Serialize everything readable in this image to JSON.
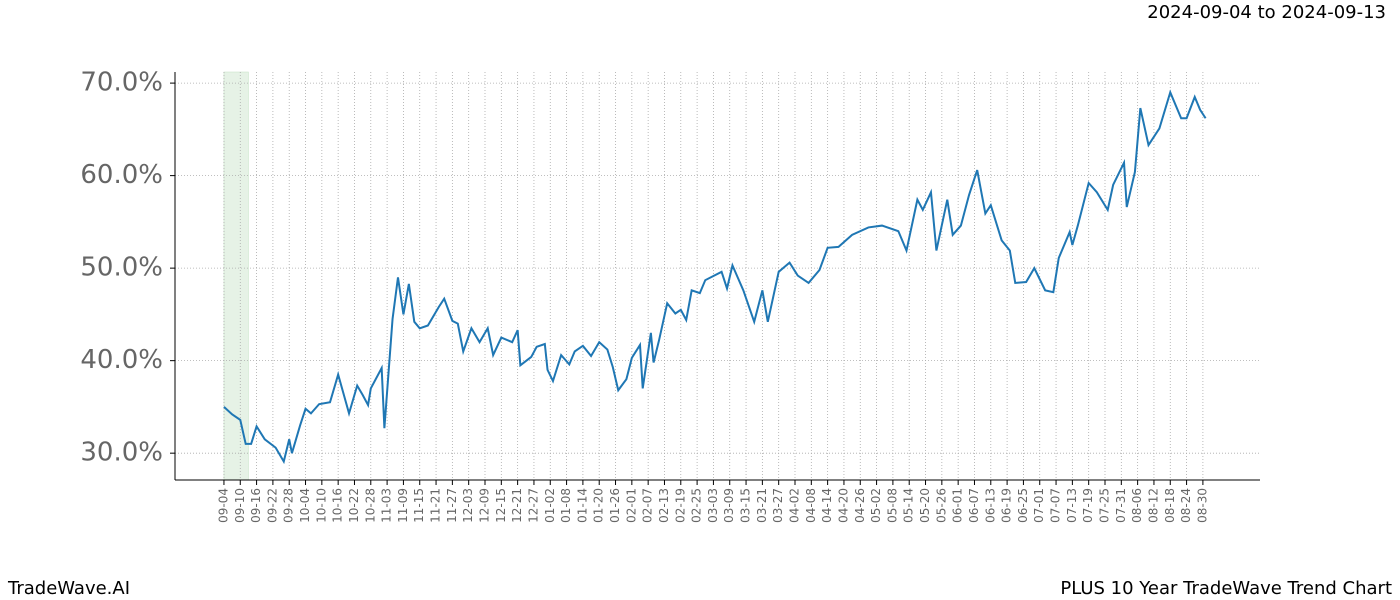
{
  "chart_data": {
    "type": "line",
    "title": "PLUS 10 Year TradeWave Trend Chart",
    "subtitle": "2024-09-04 to 2024-09-13",
    "brand": "TradeWave.AI",
    "shade": [
      "09-04",
      "09-13"
    ],
    "shade_color": "#d6ebd6",
    "grid": true,
    "x": [
      "09-04",
      "09-07",
      "09-10",
      "09-12",
      "09-14",
      "09-16",
      "09-19",
      "09-23",
      "09-26",
      "09-28",
      "09-29",
      "10-02",
      "10-04",
      "10-06",
      "10-09",
      "10-13",
      "10-16",
      "10-20",
      "10-23",
      "10-25",
      "10-27",
      "10-28",
      "11-01",
      "11-02",
      "11-05",
      "11-07",
      "11-09",
      "11-11",
      "11-13",
      "11-15",
      "11-18",
      "11-22",
      "11-24",
      "11-27",
      "11-29",
      "12-01",
      "12-04",
      "12-07",
      "12-10",
      "12-12",
      "12-15",
      "12-19",
      "12-21",
      "12-22",
      "12-26",
      "12-28",
      "12-31",
      "01-01",
      "01-03",
      "01-06",
      "01-09",
      "01-11",
      "01-14",
      "01-17",
      "01-20",
      "01-23",
      "01-25",
      "01-27",
      "01-30",
      "02-01",
      "02-04",
      "02-05",
      "02-08",
      "02-09",
      "02-11",
      "02-14",
      "02-17",
      "02-19",
      "02-21",
      "02-23",
      "02-26",
      "02-28",
      "03-06",
      "03-08",
      "03-10",
      "03-14",
      "03-18",
      "03-21",
      "03-23",
      "03-27",
      "03-31",
      "04-03",
      "04-07",
      "04-11",
      "04-14",
      "04-18",
      "04-23",
      "04-29",
      "05-04",
      "05-10",
      "05-13",
      "05-17",
      "05-19",
      "05-22",
      "05-24",
      "05-28",
      "05-30",
      "06-02",
      "06-05",
      "06-08",
      "06-11",
      "06-13",
      "06-17",
      "06-20",
      "06-22",
      "06-26",
      "06-29",
      "07-03",
      "07-06",
      "07-08",
      "07-12",
      "07-13",
      "07-15",
      "07-19",
      "07-22",
      "07-26",
      "07-28",
      "08-01",
      "08-02",
      "08-05",
      "08-07",
      "08-10",
      "08-14",
      "08-18",
      "08-22",
      "08-24",
      "08-27",
      "08-29",
      "08-31"
    ],
    "series": [
      {
        "name": "PLUS",
        "color": "#1f77b4",
        "values": [
          35.0,
          34.2,
          33.6,
          31.0,
          31.0,
          32.9,
          31.5,
          30.6,
          29.1,
          31.5,
          30.0,
          33.0,
          34.8,
          34.3,
          35.3,
          35.5,
          38.5,
          34.3,
          37.3,
          36.3,
          35.2,
          37.0,
          39.2,
          32.7,
          44.5,
          49.0,
          45.0,
          48.3,
          44.2,
          43.5,
          43.8,
          45.8,
          46.7,
          44.3,
          44.0,
          41.0,
          43.5,
          42.0,
          43.5,
          40.6,
          42.5,
          42.0,
          43.3,
          39.5,
          40.4,
          41.5,
          41.8,
          39.0,
          37.8,
          40.6,
          39.6,
          41.0,
          41.6,
          40.5,
          42.0,
          41.2,
          39.3,
          36.8,
          38.0,
          40.3,
          41.7,
          37.0,
          43.0,
          39.8,
          42.2,
          46.2,
          45.1,
          45.5,
          44.4,
          47.6,
          47.3,
          48.7,
          49.6,
          47.8,
          50.3,
          47.6,
          44.2,
          47.6,
          44.2,
          49.6,
          50.6,
          49.2,
          48.4,
          49.8,
          52.2,
          52.3,
          53.6,
          54.4,
          54.6,
          54.0,
          51.9,
          57.4,
          56.3,
          58.2,
          51.9,
          57.4,
          53.6,
          54.6,
          57.9,
          60.6,
          55.9,
          56.8,
          53.0,
          51.9,
          48.4,
          48.5,
          50.0,
          47.6,
          47.4,
          51.1,
          53.9,
          52.5,
          54.6,
          59.2,
          58.2,
          56.3,
          59.0,
          61.4,
          56.6,
          60.4,
          67.3,
          63.3,
          65.1,
          69.0,
          66.2,
          66.2,
          68.5,
          67.1,
          66.2
        ]
      }
    ],
    "ylim": [
      27.1,
      71.2
    ],
    "yticks": [
      {
        "value": 30,
        "label": "30.0%"
      },
      {
        "value": 40,
        "label": "40.0%"
      },
      {
        "value": 50,
        "label": "50.0%"
      },
      {
        "value": 60,
        "label": "60.0%"
      },
      {
        "value": 70,
        "label": "70.0%"
      }
    ],
    "xticks": [
      "09-04",
      "09-10",
      "09-16",
      "09-22",
      "09-28",
      "10-04",
      "10-10",
      "10-16",
      "10-22",
      "10-28",
      "11-03",
      "11-09",
      "11-15",
      "11-21",
      "11-27",
      "12-03",
      "12-09",
      "12-15",
      "12-21",
      "12-27",
      "01-02",
      "01-08",
      "01-14",
      "01-20",
      "01-26",
      "02-01",
      "02-07",
      "02-13",
      "02-19",
      "02-25",
      "03-03",
      "03-09",
      "03-15",
      "03-21",
      "03-27",
      "04-02",
      "04-08",
      "04-14",
      "04-20",
      "04-26",
      "05-02",
      "05-08",
      "05-14",
      "05-20",
      "05-26",
      "06-01",
      "06-07",
      "06-13",
      "06-19",
      "06-25",
      "07-01",
      "07-07",
      "07-13",
      "07-19",
      "07-25",
      "07-31",
      "08-06",
      "08-12",
      "08-18",
      "08-24",
      "08-30"
    ]
  }
}
